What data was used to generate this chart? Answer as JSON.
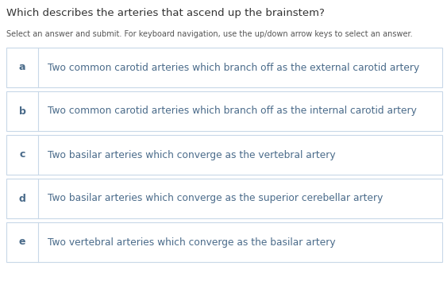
{
  "title": "Which describes the arteries that ascend up the brainstem?",
  "subtitle": "Select an answer and submit. For keyboard navigation, use the up/down arrow keys to select an answer.",
  "options": [
    {
      "letter": "a",
      "text": "Two common carotid arteries which branch off as the external carotid artery"
    },
    {
      "letter": "b",
      "text": "Two common carotid arteries which branch off as the internal carotid artery"
    },
    {
      "letter": "c",
      "text": "Two basilar arteries which converge as the vertebral artery"
    },
    {
      "letter": "d",
      "text": "Two basilar arteries which converge as the superior cerebellar artery"
    },
    {
      "letter": "e",
      "text": "Two vertebral arteries which converge as the basilar artery"
    }
  ],
  "bg_color": "#ffffff",
  "title_color": "#333333",
  "subtitle_color": "#555555",
  "letter_color": "#4a6b8a",
  "option_text_color": "#4a6b8a",
  "border_color": "#c8d8e8",
  "divider_color": "#c8d8e8",
  "title_fontsize": 9.5,
  "subtitle_fontsize": 7.0,
  "option_fontsize": 8.8,
  "letter_fontsize": 9.0,
  "fig_width": 5.63,
  "fig_height": 3.64,
  "dpi": 100
}
